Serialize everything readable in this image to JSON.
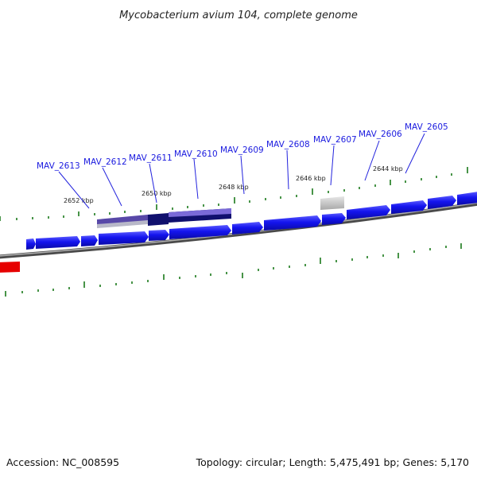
{
  "title": "Mycobacterium avium 104, complete genome",
  "footer": {
    "accession": "Accession: NC_008595",
    "summary": "Topology: circular; Length: 5,475,491 bp; Genes: 5,170"
  },
  "gene_labels": [
    "MAV_2613",
    "MAV_2612",
    "MAV_2611",
    "MAV_2610",
    "MAV_2609",
    "MAV_2608",
    "MAV_2607",
    "MAV_2606",
    "MAV_2605"
  ],
  "kbp_labels": [
    "2652 kbp",
    "2650 kbp",
    "2648 kbp",
    "2646 kbp",
    "2644 kbp"
  ],
  "colors": {
    "cds_forward": "#1010e8",
    "backbone": "#777777",
    "tick": "#1a7a1a",
    "label": "#1a1adf",
    "highlight_dark": "#10106e",
    "highlight_light": "#7a6ad8",
    "other_feature": "#ee0000",
    "gray_feature": "#aaaaaa"
  }
}
